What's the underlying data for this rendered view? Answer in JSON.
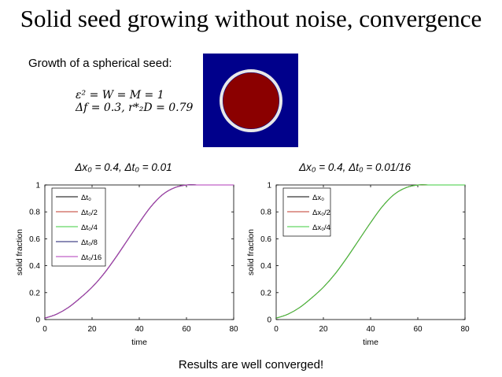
{
  "slide": {
    "title": "Solid seed growing without noise, convergence",
    "intro": "Growth of a spherical seed:",
    "equation_line1": "ε² = W = M = 1",
    "equation_line2": "Δf = 0.3, r*₂D = 0.79",
    "footer": "Results are well converged!"
  },
  "seed_image": {
    "background_color": "#00008b",
    "seed_color": "#8b0000",
    "ring_color": "#e8e8e8"
  },
  "chart_data": [
    {
      "type": "line",
      "title": "Δx₀ = 0.4, Δt₀ = 0.01",
      "xlabel": "time",
      "ylabel": "solid fraction",
      "xlim": [
        0,
        80
      ],
      "ylim": [
        0,
        1
      ],
      "xticks": [
        0,
        20,
        40,
        60,
        80
      ],
      "yticks": [
        0,
        0.2,
        0.4,
        0.6,
        0.8,
        1
      ],
      "ytick_labels": [
        "0",
        "0.2",
        "0.4",
        "0.6",
        "0.8",
        "1"
      ],
      "legend_position": "top-left",
      "x": [
        0,
        5,
        10,
        15,
        20,
        25,
        30,
        35,
        40,
        45,
        50,
        55,
        60,
        65,
        70,
        75,
        80
      ],
      "series": [
        {
          "name": "Δt₀",
          "color": "#000000",
          "values": [
            0.01,
            0.04,
            0.09,
            0.16,
            0.24,
            0.34,
            0.46,
            0.59,
            0.72,
            0.84,
            0.93,
            0.98,
            1,
            1,
            1,
            1,
            1
          ]
        },
        {
          "name": "Δt₀/2",
          "color": "#c0392b",
          "values": [
            0.01,
            0.04,
            0.09,
            0.16,
            0.24,
            0.34,
            0.46,
            0.59,
            0.72,
            0.84,
            0.93,
            0.98,
            1,
            1,
            1,
            1,
            1
          ]
        },
        {
          "name": "Δt₀/4",
          "color": "#3dcc3d",
          "values": [
            0.01,
            0.04,
            0.09,
            0.16,
            0.24,
            0.34,
            0.46,
            0.59,
            0.72,
            0.84,
            0.93,
            0.98,
            1,
            1,
            1,
            1,
            1
          ]
        },
        {
          "name": "Δt₀/8",
          "color": "#1a1a6e",
          "values": [
            0.01,
            0.04,
            0.09,
            0.16,
            0.24,
            0.34,
            0.46,
            0.59,
            0.72,
            0.84,
            0.93,
            0.98,
            1,
            1,
            1,
            1,
            1
          ]
        },
        {
          "name": "Δt₀/16",
          "color": "#b03ab8",
          "values": [
            0.01,
            0.04,
            0.09,
            0.16,
            0.24,
            0.34,
            0.46,
            0.59,
            0.72,
            0.84,
            0.93,
            0.98,
            1,
            1,
            1,
            1,
            1
          ]
        }
      ]
    },
    {
      "type": "line",
      "title": "Δx₀ = 0.4, Δt₀ = 0.01/16",
      "xlabel": "time",
      "ylabel": "solid fraction",
      "xlim": [
        0,
        80
      ],
      "ylim": [
        0,
        1
      ],
      "xticks": [
        0,
        20,
        40,
        60,
        80
      ],
      "yticks": [
        0,
        0.2,
        0.4,
        0.6,
        0.8,
        1
      ],
      "ytick_labels": [
        "0",
        "0.2",
        "0.4",
        "0.6",
        "0.8",
        "1"
      ],
      "legend_position": "top-left",
      "x": [
        0,
        5,
        10,
        15,
        20,
        25,
        30,
        35,
        40,
        45,
        50,
        55,
        60,
        65,
        70,
        75,
        80
      ],
      "series": [
        {
          "name": "Δx₀",
          "color": "#000000",
          "values": [
            0.01,
            0.04,
            0.09,
            0.16,
            0.24,
            0.34,
            0.46,
            0.59,
            0.72,
            0.84,
            0.93,
            0.98,
            1,
            1,
            1,
            1,
            1
          ]
        },
        {
          "name": "Δx₀/2",
          "color": "#c0392b",
          "values": [
            0.01,
            0.04,
            0.09,
            0.16,
            0.24,
            0.34,
            0.46,
            0.59,
            0.72,
            0.84,
            0.93,
            0.98,
            1,
            1,
            1,
            1,
            1
          ]
        },
        {
          "name": "Δx₀/4",
          "color": "#3dcc3d",
          "values": [
            0.01,
            0.04,
            0.09,
            0.16,
            0.24,
            0.34,
            0.46,
            0.59,
            0.72,
            0.84,
            0.93,
            0.98,
            1,
            1,
            1,
            1,
            1
          ]
        }
      ]
    }
  ]
}
